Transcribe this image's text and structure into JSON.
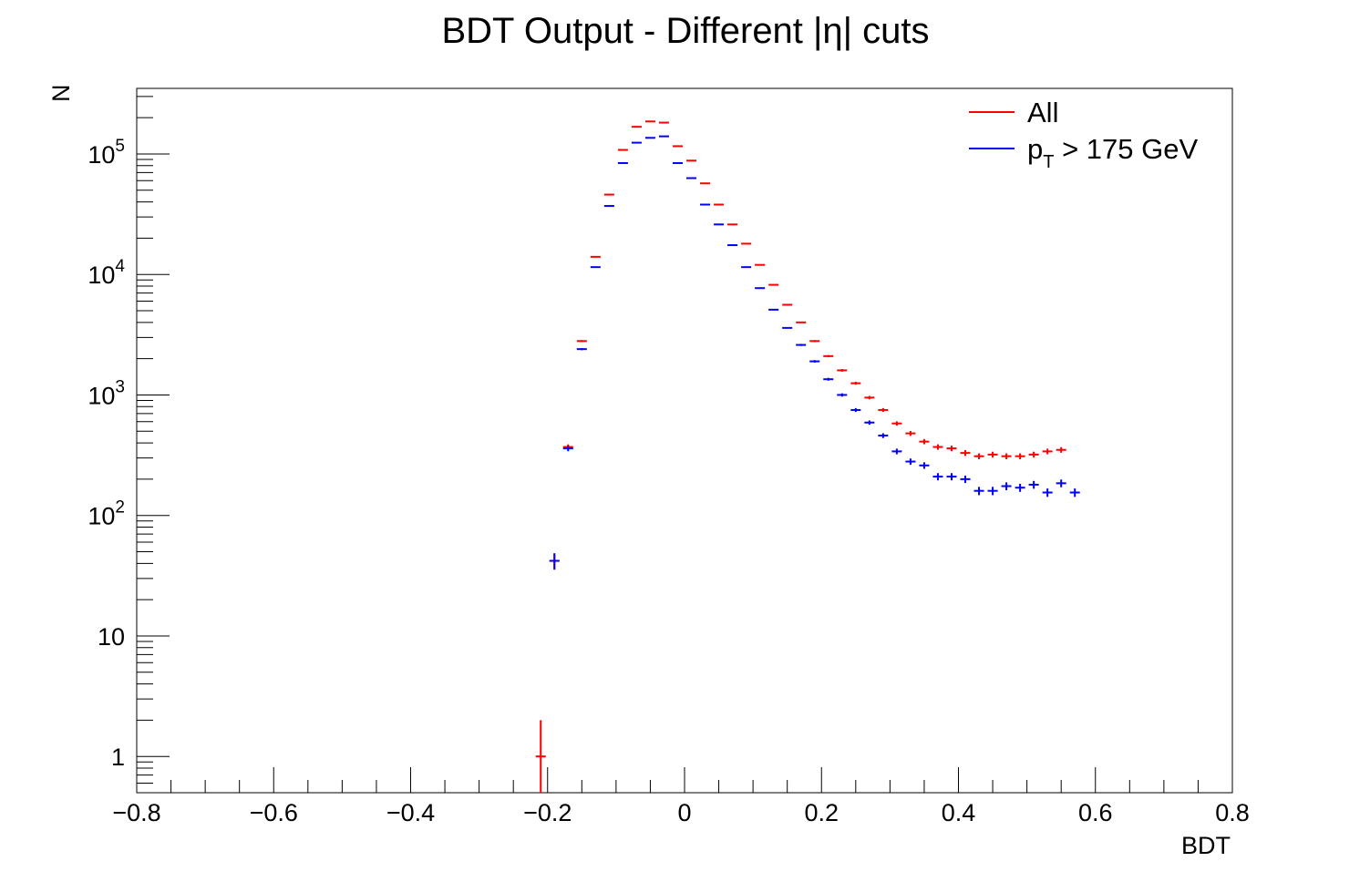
{
  "chart_data": {
    "type": "scatter",
    "title": "BDT Output - Different |η| cuts",
    "xlabel": "BDT",
    "ylabel": "N",
    "xlim": [
      -0.8,
      0.8
    ],
    "ylim": [
      0.5,
      350000
    ],
    "yscale": "log",
    "bin_width": 0.02,
    "x_ticks": [
      -0.8,
      -0.6,
      -0.4,
      -0.2,
      0,
      0.2,
      0.4,
      0.6,
      0.8
    ],
    "x_tick_labels": [
      "−0.8",
      "−0.6",
      "−0.4",
      "−0.2",
      "0",
      "0.2",
      "0.4",
      "0.6",
      "0.8"
    ],
    "y_ticks": [
      {
        "value": 1,
        "base": "1",
        "exp": ""
      },
      {
        "value": 10,
        "base": "10",
        "exp": ""
      },
      {
        "value": 100,
        "base": "10",
        "exp": "2"
      },
      {
        "value": 1000,
        "base": "10",
        "exp": "3"
      },
      {
        "value": 10000,
        "base": "10",
        "exp": "4"
      },
      {
        "value": 100000,
        "base": "10",
        "exp": "5"
      }
    ],
    "legend_position": "top-right",
    "legend": [
      {
        "label": "All",
        "sub": "",
        "rest": "",
        "color": "#ff0000"
      },
      {
        "label": "p",
        "sub": "T",
        "rest": " > 175 GeV",
        "color": "#0000ff"
      }
    ],
    "series": [
      {
        "name": "All",
        "color": "#ff0000",
        "x": [
          -0.21,
          -0.19,
          -0.17,
          -0.15,
          -0.13,
          -0.11,
          -0.09,
          -0.07,
          -0.05,
          -0.03,
          -0.01,
          0.01,
          0.03,
          0.05,
          0.07,
          0.09,
          0.11,
          0.13,
          0.15,
          0.17,
          0.19,
          0.21,
          0.23,
          0.25,
          0.27,
          0.29,
          0.31,
          0.33,
          0.35,
          0.37,
          0.39,
          0.41,
          0.43,
          0.45,
          0.47,
          0.49,
          0.51,
          0.53,
          0.55
        ],
        "y": [
          1,
          42,
          370,
          2800,
          14000,
          46000,
          108000,
          168000,
          186000,
          182000,
          116000,
          88000,
          57000,
          38000,
          26000,
          18000,
          12000,
          8200,
          5600,
          4000,
          2800,
          2100,
          1600,
          1250,
          950,
          750,
          580,
          480,
          410,
          370,
          360,
          330,
          310,
          320,
          310,
          310,
          320,
          340,
          350
        ]
      },
      {
        "name": "pT > 175 GeV",
        "color": "#0000ff",
        "x": [
          -0.19,
          -0.17,
          -0.15,
          -0.13,
          -0.11,
          -0.09,
          -0.07,
          -0.05,
          -0.03,
          -0.01,
          0.01,
          0.03,
          0.05,
          0.07,
          0.09,
          0.11,
          0.13,
          0.15,
          0.17,
          0.19,
          0.21,
          0.23,
          0.25,
          0.27,
          0.29,
          0.31,
          0.33,
          0.35,
          0.37,
          0.39,
          0.41,
          0.43,
          0.45,
          0.47,
          0.49,
          0.51,
          0.53,
          0.55,
          0.57
        ],
        "y": [
          42,
          360,
          2400,
          11500,
          37000,
          84000,
          124000,
          136000,
          140000,
          84000,
          63000,
          38000,
          26000,
          17500,
          11500,
          7700,
          5100,
          3600,
          2600,
          1900,
          1350,
          1000,
          750,
          590,
          460,
          340,
          280,
          260,
          210,
          210,
          200,
          160,
          160,
          175,
          170,
          180,
          155,
          185,
          155
        ]
      }
    ]
  }
}
